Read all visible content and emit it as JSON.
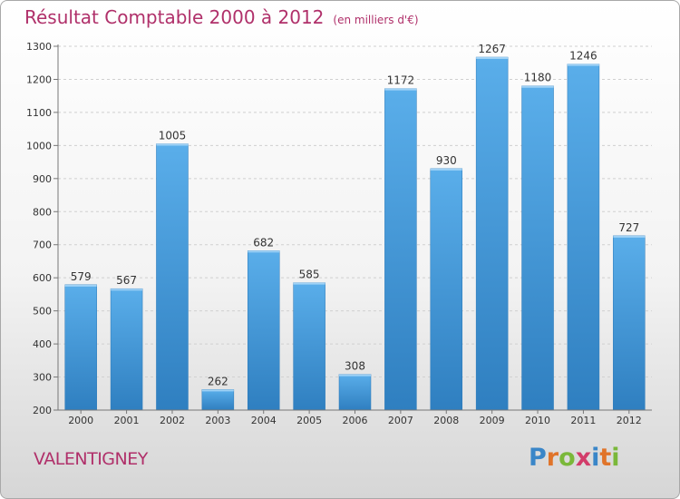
{
  "header": {
    "title": "Résultat Comptable 2000 à 2012",
    "unit": "(en milliers d'€)"
  },
  "footer": {
    "commune": "VALENTIGNEY",
    "logo_text": "Proxiti"
  },
  "colors": {
    "title": "#b0306a",
    "bar": "#3f9ee3",
    "logo_letters": [
      "#3a86c8",
      "#e0742a",
      "#7ab83a",
      "#d23c6a",
      "#3a86c8",
      "#e0742a",
      "#7ab83a"
    ]
  },
  "chart_data": {
    "type": "bar",
    "title": "Résultat Comptable 2000 à 2012",
    "subtitle": "(en milliers d'€)",
    "xlabel": "",
    "ylabel": "",
    "categories": [
      "2000",
      "2001",
      "2002",
      "2003",
      "2004",
      "2005",
      "2006",
      "2007",
      "2008",
      "2009",
      "2010",
      "2011",
      "2012"
    ],
    "values": [
      579,
      567,
      1005,
      262,
      682,
      585,
      308,
      1172,
      930,
      1267,
      1180,
      1246,
      727
    ],
    "ylim": [
      200,
      1300
    ],
    "yticks": [
      200,
      300,
      400,
      500,
      600,
      700,
      800,
      900,
      1000,
      1100,
      1200,
      1300
    ],
    "grid": true,
    "legend": "none"
  }
}
